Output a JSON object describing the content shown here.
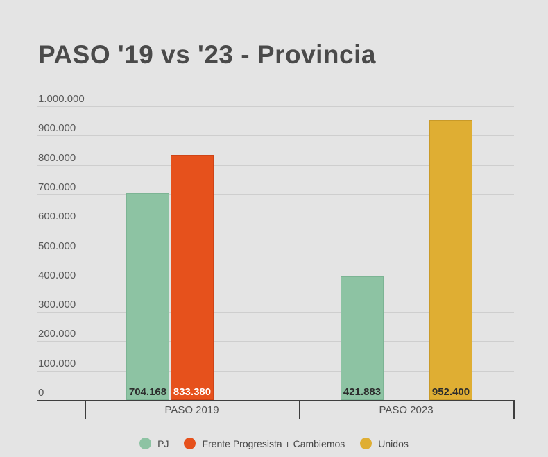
{
  "title": "PASO '19 vs '23 - Provincia",
  "colors": {
    "background": "#e4e4e4",
    "gridline": "#cecece",
    "axis": "#3e3e3e",
    "title_text": "#4a4a4a",
    "y_label_text": "#595959",
    "x_label_text": "#4f4f4f",
    "legend_text": "#474747"
  },
  "chart_data": {
    "type": "bar",
    "title": "PASO '19 vs '23 - Provincia",
    "categories": [
      "PASO 2019",
      "PASO 2023"
    ],
    "series": [
      {
        "name": "PJ",
        "color": "#8dc3a3",
        "border_color": "#7cb494",
        "label_color": "#2d2d2d",
        "values": [
          704168,
          421883
        ],
        "value_labels": [
          "704.168",
          "421.883"
        ]
      },
      {
        "name": "Frente Progresista + Cambiemos",
        "color": "#e6511c",
        "border_color": "#cf4417",
        "label_color": "#ffffff",
        "values": [
          833380,
          null
        ],
        "value_labels": [
          "833.380",
          null
        ]
      },
      {
        "name": "Unidos",
        "color": "#dfae33",
        "border_color": "#c99a28",
        "label_color": "#2d2d2d",
        "values": [
          null,
          952400
        ],
        "value_labels": [
          null,
          "952.400"
        ]
      }
    ],
    "y_axis": {
      "min": 0,
      "max": 1000000,
      "step": 100000,
      "tick_labels": [
        "0",
        "100.000",
        "200.000",
        "300.000",
        "400.000",
        "500.000",
        "600.000",
        "700.000",
        "800.000",
        "900.000",
        "1.000.000"
      ]
    },
    "grid": true,
    "legend_position": "bottom"
  }
}
